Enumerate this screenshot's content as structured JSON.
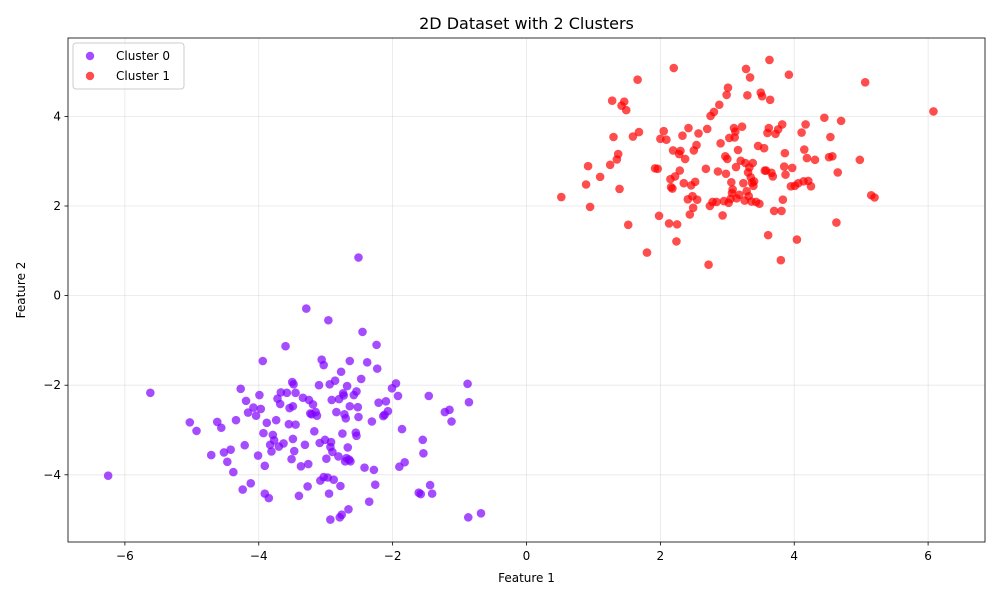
{
  "chart_data": {
    "type": "scatter",
    "title": "2D Dataset with 2 Clusters",
    "xlabel": "Feature 1",
    "ylabel": "Feature 2",
    "xlim": [
      -6.85,
      6.85
    ],
    "ylim": [
      -5.5,
      5.75
    ],
    "xticks": [
      -6,
      -4,
      -2,
      0,
      2,
      4,
      6
    ],
    "yticks": [
      -4,
      -2,
      0,
      2,
      4
    ],
    "xtick_labels": [
      "−6",
      "−4",
      "−2",
      "0",
      "2",
      "4",
      "6"
    ],
    "ytick_labels": [
      "−4",
      "−2",
      "0",
      "2",
      "4"
    ],
    "grid": true,
    "legend_position": "top-left",
    "series": [
      {
        "name": "Cluster 0",
        "color": "#8000ff",
        "points": [
          [
            -6.25,
            -4.02
          ],
          [
            -5.62,
            -2.17
          ],
          [
            -5.03,
            -2.83
          ],
          [
            -4.93,
            -3.02
          ],
          [
            -4.71,
            -3.56
          ],
          [
            -4.62,
            -2.82
          ],
          [
            -4.56,
            -2.95
          ],
          [
            -4.52,
            -3.5
          ],
          [
            -4.47,
            -3.71
          ],
          [
            -4.42,
            -3.44
          ],
          [
            -4.38,
            -3.94
          ],
          [
            -4.34,
            -2.78
          ],
          [
            -4.27,
            -2.08
          ],
          [
            -4.24,
            -4.33
          ],
          [
            -4.21,
            -3.34
          ],
          [
            -4.19,
            -2.35
          ],
          [
            -4.16,
            -2.61
          ],
          [
            -4.12,
            -4.19
          ],
          [
            -4.08,
            -2.5
          ],
          [
            -4.04,
            -2.68
          ],
          [
            -4.01,
            -3.57
          ],
          [
            -3.99,
            -2.22
          ],
          [
            -3.97,
            -2.53
          ],
          [
            -3.94,
            -1.46
          ],
          [
            -3.93,
            -3.07
          ],
          [
            -3.91,
            -4.42
          ],
          [
            -3.91,
            -3.8
          ],
          [
            -3.88,
            -2.84
          ],
          [
            -3.85,
            -4.52
          ],
          [
            -3.83,
            -3.33
          ],
          [
            -3.81,
            -3.48
          ],
          [
            -3.79,
            -3.11
          ],
          [
            -3.77,
            -3.23
          ],
          [
            -3.74,
            -2.78
          ],
          [
            -3.72,
            -2.3
          ],
          [
            -3.7,
            -3.37
          ],
          [
            -3.68,
            -2.42
          ],
          [
            -3.67,
            -2.16
          ],
          [
            -3.63,
            -3.3
          ],
          [
            -3.6,
            -1.13
          ],
          [
            -3.58,
            -2.17
          ],
          [
            -3.55,
            -2.87
          ],
          [
            -3.54,
            -2.51
          ],
          [
            -3.51,
            -3.65
          ],
          [
            -3.5,
            -1.93
          ],
          [
            -3.49,
            -3.2
          ],
          [
            -3.49,
            -2.47
          ],
          [
            -3.48,
            -1.98
          ],
          [
            -3.47,
            -3.47
          ],
          [
            -3.45,
            -2.17
          ],
          [
            -3.45,
            -2.88
          ],
          [
            -3.4,
            -4.47
          ],
          [
            -3.37,
            -3.81
          ],
          [
            -3.34,
            -2.28
          ],
          [
            -3.31,
            -3.33
          ],
          [
            -3.29,
            -0.29
          ],
          [
            -3.27,
            -4.26
          ],
          [
            -3.26,
            -3.76
          ],
          [
            -3.25,
            -2.33
          ],
          [
            -3.23,
            -2.63
          ],
          [
            -3.21,
            -2.65
          ],
          [
            -3.19,
            -2.43
          ],
          [
            -3.17,
            -3.03
          ],
          [
            -3.15,
            -2.6
          ],
          [
            -3.13,
            -2.68
          ],
          [
            -3.1,
            -2.0
          ],
          [
            -3.09,
            -3.29
          ],
          [
            -3.08,
            -4.13
          ],
          [
            -3.06,
            -1.43
          ],
          [
            -3.03,
            -4.05
          ],
          [
            -3.03,
            -1.55
          ],
          [
            -3.01,
            -3.22
          ],
          [
            -2.99,
            -3.64
          ],
          [
            -2.97,
            -4.06
          ],
          [
            -2.96,
            -0.55
          ],
          [
            -2.95,
            -4.42
          ],
          [
            -2.94,
            -1.98
          ],
          [
            -2.93,
            -3.38
          ],
          [
            -2.93,
            -5.0
          ],
          [
            -2.92,
            -3.27
          ],
          [
            -2.91,
            -2.33
          ],
          [
            -2.9,
            -3.49
          ],
          [
            -2.88,
            -4.11
          ],
          [
            -2.86,
            -1.9
          ],
          [
            -2.84,
            -2.6
          ],
          [
            -2.81,
            -3.59
          ],
          [
            -2.8,
            -2.31
          ],
          [
            -2.79,
            -4.95
          ],
          [
            -2.78,
            -4.25
          ],
          [
            -2.77,
            -1.7
          ],
          [
            -2.76,
            -4.89
          ],
          [
            -2.75,
            -3.08
          ],
          [
            -2.74,
            -2.18
          ],
          [
            -2.73,
            -2.23
          ],
          [
            -2.72,
            -2.65
          ],
          [
            -2.71,
            -3.7
          ],
          [
            -2.7,
            -2.74
          ],
          [
            -2.69,
            -3.63
          ],
          [
            -2.68,
            -2.02
          ],
          [
            -2.67,
            -3.39
          ],
          [
            -2.66,
            -4.77
          ],
          [
            -2.65,
            -3.66
          ],
          [
            -2.64,
            -1.46
          ],
          [
            -2.64,
            -2.47
          ],
          [
            -2.63,
            -3.7
          ],
          [
            -2.58,
            -2.22
          ],
          [
            -2.55,
            -3.06
          ],
          [
            -2.54,
            -2.14
          ],
          [
            -2.54,
            -3.13
          ],
          [
            -2.52,
            -2.49
          ],
          [
            -2.51,
            0.85
          ],
          [
            -2.51,
            -2.71
          ],
          [
            -2.47,
            -1.86
          ],
          [
            -2.45,
            -0.81
          ],
          [
            -2.42,
            -3.84
          ],
          [
            -2.38,
            -1.49
          ],
          [
            -2.35,
            -4.6
          ],
          [
            -2.31,
            -2.81
          ],
          [
            -2.28,
            -3.89
          ],
          [
            -2.26,
            -4.22
          ],
          [
            -2.24,
            -1.1
          ],
          [
            -2.23,
            -1.63
          ],
          [
            -2.21,
            -2.39
          ],
          [
            -2.14,
            -2.69
          ],
          [
            -2.12,
            -2.66
          ],
          [
            -2.1,
            -2.36
          ],
          [
            -2.07,
            -2.58
          ],
          [
            -2.01,
            -2.07
          ],
          [
            -1.95,
            -1.96
          ],
          [
            -1.92,
            -2.24
          ],
          [
            -1.9,
            -3.82
          ],
          [
            -1.86,
            -2.98
          ],
          [
            -1.82,
            -3.72
          ],
          [
            -1.61,
            -4.4
          ],
          [
            -1.58,
            -4.43
          ],
          [
            -1.55,
            -3.22
          ],
          [
            -1.54,
            -3.52
          ],
          [
            -1.46,
            -2.24
          ],
          [
            -1.44,
            -4.23
          ],
          [
            -1.41,
            -4.42
          ],
          [
            -1.22,
            -2.6
          ],
          [
            -1.15,
            -2.55
          ],
          [
            -1.12,
            -2.81
          ],
          [
            -0.88,
            -1.97
          ],
          [
            -0.87,
            -4.95
          ],
          [
            -0.86,
            -2.38
          ],
          [
            -0.68,
            -4.86
          ]
        ]
      },
      {
        "name": "Cluster 1",
        "color": "#ff0000",
        "points": [
          [
            0.52,
            2.2
          ],
          [
            0.89,
            2.48
          ],
          [
            0.92,
            2.89
          ],
          [
            0.95,
            1.98
          ],
          [
            1.1,
            2.65
          ],
          [
            1.25,
            2.92
          ],
          [
            1.28,
            4.35
          ],
          [
            1.3,
            3.54
          ],
          [
            1.35,
            3.04
          ],
          [
            1.37,
            3.16
          ],
          [
            1.39,
            2.38
          ],
          [
            1.42,
            4.24
          ],
          [
            1.46,
            4.33
          ],
          [
            1.49,
            4.14
          ],
          [
            1.52,
            1.58
          ],
          [
            1.59,
            3.55
          ],
          [
            1.66,
            4.82
          ],
          [
            1.68,
            3.65
          ],
          [
            1.8,
            0.96
          ],
          [
            1.92,
            2.84
          ],
          [
            1.96,
            2.83
          ],
          [
            1.98,
            1.78
          ],
          [
            2.0,
            3.5
          ],
          [
            2.05,
            3.67
          ],
          [
            2.09,
            3.48
          ],
          [
            2.13,
            1.61
          ],
          [
            2.15,
            2.6
          ],
          [
            2.16,
            2.42
          ],
          [
            2.18,
            2.39
          ],
          [
            2.19,
            3.24
          ],
          [
            2.2,
            5.08
          ],
          [
            2.22,
            2.66
          ],
          [
            2.24,
            1.21
          ],
          [
            2.25,
            1.59
          ],
          [
            2.28,
            3.16
          ],
          [
            2.29,
            2.79
          ],
          [
            2.3,
            3.23
          ],
          [
            2.33,
            3.57
          ],
          [
            2.35,
            2.51
          ],
          [
            2.37,
            3.05
          ],
          [
            2.41,
            2.15
          ],
          [
            2.42,
            3.74
          ],
          [
            2.44,
            1.81
          ],
          [
            2.46,
            2.46
          ],
          [
            2.48,
            2.22
          ],
          [
            2.49,
            1.96
          ],
          [
            2.5,
            3.24
          ],
          [
            2.52,
            2.54
          ],
          [
            2.54,
            3.36
          ],
          [
            2.55,
            2.14
          ],
          [
            2.57,
            3.62
          ],
          [
            2.68,
            2.83
          ],
          [
            2.7,
            3.72
          ],
          [
            2.72,
            0.69
          ],
          [
            2.74,
            2.0
          ],
          [
            2.75,
            4.01
          ],
          [
            2.78,
            2.09
          ],
          [
            2.8,
            4.1
          ],
          [
            2.84,
            2.09
          ],
          [
            2.86,
            2.77
          ],
          [
            2.88,
            4.26
          ],
          [
            2.9,
            3.4
          ],
          [
            2.93,
            1.79
          ],
          [
            2.95,
            2.11
          ],
          [
            2.97,
            3.11
          ],
          [
            2.98,
            2.72
          ],
          [
            2.99,
            4.48
          ],
          [
            3.0,
            3.05
          ],
          [
            3.01,
            4.64
          ],
          [
            3.02,
            2.07
          ],
          [
            3.03,
            3.52
          ],
          [
            3.05,
            2.16
          ],
          [
            3.06,
            2.53
          ],
          [
            3.07,
            2.29
          ],
          [
            3.08,
            2.37
          ],
          [
            3.1,
            3.74
          ],
          [
            3.11,
            3.53
          ],
          [
            3.12,
            3.66
          ],
          [
            3.13,
            2.87
          ],
          [
            3.14,
            2.17
          ],
          [
            3.16,
            3.25
          ],
          [
            3.18,
            2.25
          ],
          [
            3.2,
            3.01
          ],
          [
            3.22,
            3.77
          ],
          [
            3.24,
            2.51
          ],
          [
            3.26,
            2.12
          ],
          [
            3.27,
            2.96
          ],
          [
            3.28,
            5.06
          ],
          [
            3.29,
            2.33
          ],
          [
            3.3,
            4.47
          ],
          [
            3.31,
            2.75
          ],
          [
            3.32,
            2.22
          ],
          [
            3.33,
            2.86
          ],
          [
            3.34,
            4.87
          ],
          [
            3.35,
            2.64
          ],
          [
            3.36,
            2.1
          ],
          [
            3.37,
            2.52
          ],
          [
            3.38,
            2.96
          ],
          [
            3.39,
            2.45
          ],
          [
            3.4,
            2.55
          ],
          [
            3.43,
            2.09
          ],
          [
            3.46,
            3.34
          ],
          [
            3.48,
            2.05
          ],
          [
            3.5,
            4.53
          ],
          [
            3.52,
            4.45
          ],
          [
            3.55,
            3.29
          ],
          [
            3.56,
            2.79
          ],
          [
            3.58,
            2.79
          ],
          [
            3.6,
            3.63
          ],
          [
            3.61,
            1.35
          ],
          [
            3.62,
            3.74
          ],
          [
            3.63,
            5.26
          ],
          [
            3.64,
            4.37
          ],
          [
            3.66,
            2.74
          ],
          [
            3.68,
            2.66
          ],
          [
            3.7,
            1.89
          ],
          [
            3.72,
            3.61
          ],
          [
            3.76,
            3.71
          ],
          [
            3.8,
            0.79
          ],
          [
            3.81,
            1.89
          ],
          [
            3.82,
            3.82
          ],
          [
            3.83,
            2.14
          ],
          [
            3.85,
            2.88
          ],
          [
            3.86,
            3.18
          ],
          [
            3.87,
            2.7
          ],
          [
            3.92,
            4.93
          ],
          [
            3.95,
            2.44
          ],
          [
            3.97,
            2.85
          ],
          [
            4.01,
            2.45
          ],
          [
            4.04,
            1.25
          ],
          [
            4.06,
            2.51
          ],
          [
            4.11,
            3.64
          ],
          [
            4.14,
            2.55
          ],
          [
            4.15,
            3.26
          ],
          [
            4.17,
            3.82
          ],
          [
            4.19,
            3.07
          ],
          [
            4.21,
            2.56
          ],
          [
            4.25,
            2.44
          ],
          [
            4.31,
            3.03
          ],
          [
            4.45,
            3.97
          ],
          [
            4.52,
            3.09
          ],
          [
            4.54,
            3.54
          ],
          [
            4.57,
            3.11
          ],
          [
            4.63,
            1.63
          ],
          [
            4.65,
            2.75
          ],
          [
            4.7,
            3.9
          ],
          [
            4.98,
            3.03
          ],
          [
            5.06,
            4.76
          ],
          [
            5.15,
            2.24
          ],
          [
            5.2,
            2.19
          ],
          [
            6.08,
            4.11
          ]
        ]
      }
    ]
  }
}
